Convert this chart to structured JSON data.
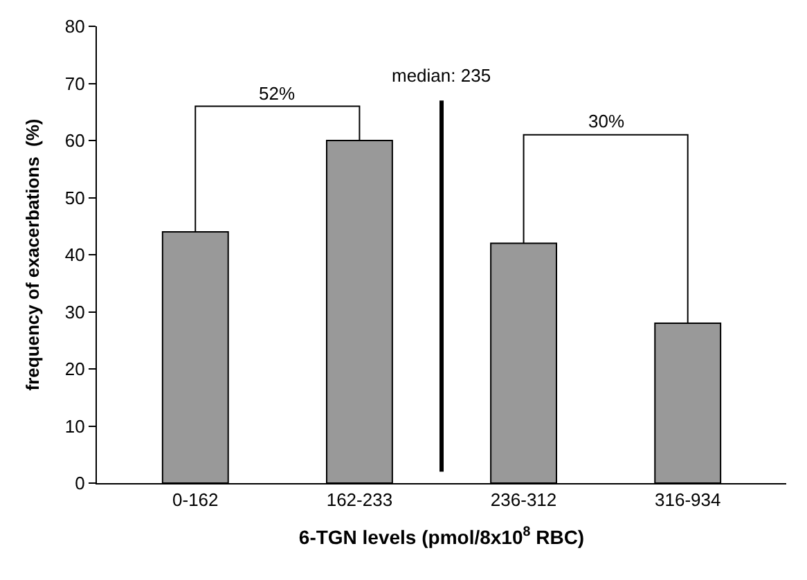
{
  "chart_data": {
    "type": "bar",
    "xlabel": "6-TGN levels (pmol/8x10$^{8}$ RBC)",
    "ylabel": "frequency of exacerbations  (%)",
    "categories": [
      "0-162",
      "162-233",
      "236-312",
      "316-934"
    ],
    "values": [
      44,
      60,
      42,
      28
    ],
    "color": "#999999",
    "ylim": [
      0,
      80
    ],
    "yticks": [
      0,
      10,
      20,
      30,
      40,
      50,
      60,
      70,
      80
    ],
    "annotations": [
      "52%",
      "30%",
      "median: 235"
    ]
  }
}
